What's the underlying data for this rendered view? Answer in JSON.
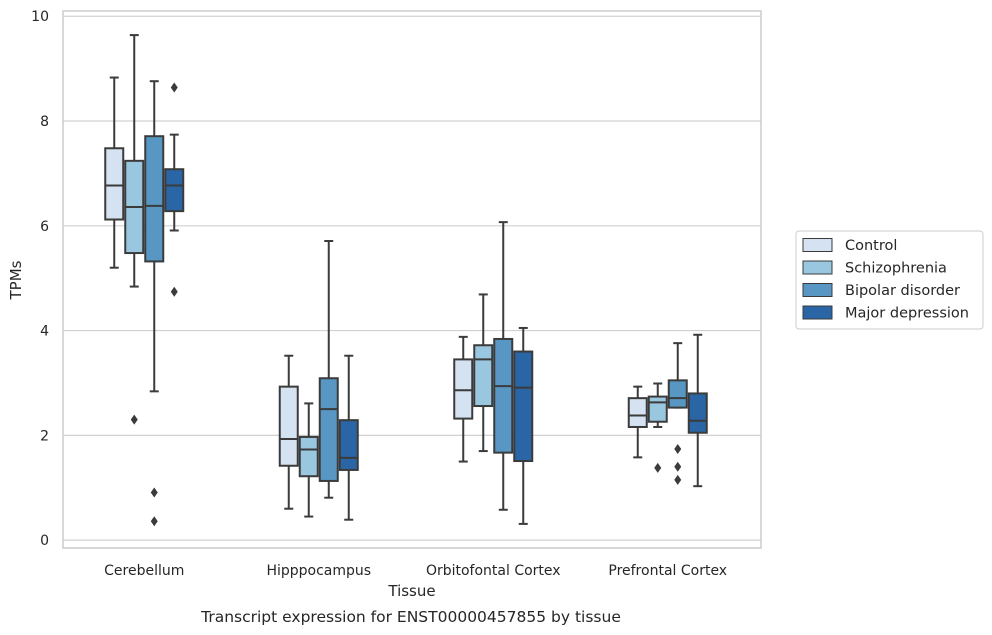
{
  "chart_data": {
    "type": "box",
    "xlabel": "Tissue",
    "ylabel": "TPMs",
    "caption": "Transcript expression for ENST00000457855 by tissue",
    "ylim": [
      -0.15,
      10.1
    ],
    "yticks": [
      0,
      2,
      4,
      6,
      8,
      10
    ],
    "grid": true,
    "legend_position": "right",
    "categories": [
      "Cerebellum",
      "Hipppocampus",
      "Orbitofontal Cortex",
      "Prefrontal Cortex"
    ],
    "series": [
      {
        "name": "Control",
        "color": "#d4e2f1",
        "boxes": [
          {
            "whisker_low": 5.2,
            "q1": 6.12,
            "median": 6.77,
            "q3": 7.48,
            "whisker_high": 8.83,
            "outliers": []
          },
          {
            "whisker_low": 0.6,
            "q1": 1.42,
            "median": 1.93,
            "q3": 2.93,
            "whisker_high": 3.52,
            "outliers": []
          },
          {
            "whisker_low": 1.5,
            "q1": 2.32,
            "median": 2.86,
            "q3": 3.45,
            "whisker_high": 3.88,
            "outliers": []
          },
          {
            "whisker_low": 1.58,
            "q1": 2.16,
            "median": 2.38,
            "q3": 2.71,
            "whisker_high": 2.93,
            "outliers": []
          }
        ]
      },
      {
        "name": "Schizophrenia",
        "color": "#9ac7e0",
        "boxes": [
          {
            "whisker_low": 4.84,
            "q1": 5.48,
            "median": 6.36,
            "q3": 7.24,
            "whisker_high": 9.64,
            "outliers": [
              2.3
            ]
          },
          {
            "whisker_low": 0.45,
            "q1": 1.22,
            "median": 1.73,
            "q3": 1.97,
            "whisker_high": 2.61,
            "outliers": []
          },
          {
            "whisker_low": 1.7,
            "q1": 2.56,
            "median": 3.45,
            "q3": 3.72,
            "whisker_high": 4.69,
            "outliers": []
          },
          {
            "whisker_low": 2.16,
            "q1": 2.26,
            "median": 2.63,
            "q3": 2.74,
            "whisker_high": 2.99,
            "outliers": [
              1.38
            ]
          }
        ]
      },
      {
        "name": "Bipolar disorder",
        "color": "#5897c3",
        "boxes": [
          {
            "whisker_low": 2.84,
            "q1": 5.32,
            "median": 6.38,
            "q3": 7.71,
            "whisker_high": 8.76,
            "outliers": [
              0.91,
              0.36
            ]
          },
          {
            "whisker_low": 0.81,
            "q1": 1.13,
            "median": 2.5,
            "q3": 3.09,
            "whisker_high": 5.71,
            "outliers": []
          },
          {
            "whisker_low": 0.58,
            "q1": 1.67,
            "median": 2.94,
            "q3": 3.84,
            "whisker_high": 6.07,
            "outliers": []
          },
          {
            "whisker_low": 2.53,
            "q1": 2.53,
            "median": 2.71,
            "q3": 3.05,
            "whisker_high": 3.76,
            "outliers": [
              1.74,
              1.4,
              1.15
            ]
          }
        ]
      },
      {
        "name": "Major depression",
        "color": "#2a65a5",
        "boxes": [
          {
            "whisker_low": 5.91,
            "q1": 6.28,
            "median": 6.77,
            "q3": 7.08,
            "whisker_high": 7.74,
            "outliers": [
              8.64,
              4.74
            ]
          },
          {
            "whisker_low": 0.39,
            "q1": 1.34,
            "median": 1.57,
            "q3": 2.29,
            "whisker_high": 3.52,
            "outliers": []
          },
          {
            "whisker_low": 0.31,
            "q1": 1.51,
            "median": 2.91,
            "q3": 3.6,
            "whisker_high": 4.05,
            "outliers": []
          },
          {
            "whisker_low": 1.03,
            "q1": 2.05,
            "median": 2.28,
            "q3": 2.8,
            "whisker_high": 3.92,
            "outliers": []
          }
        ]
      }
    ]
  }
}
